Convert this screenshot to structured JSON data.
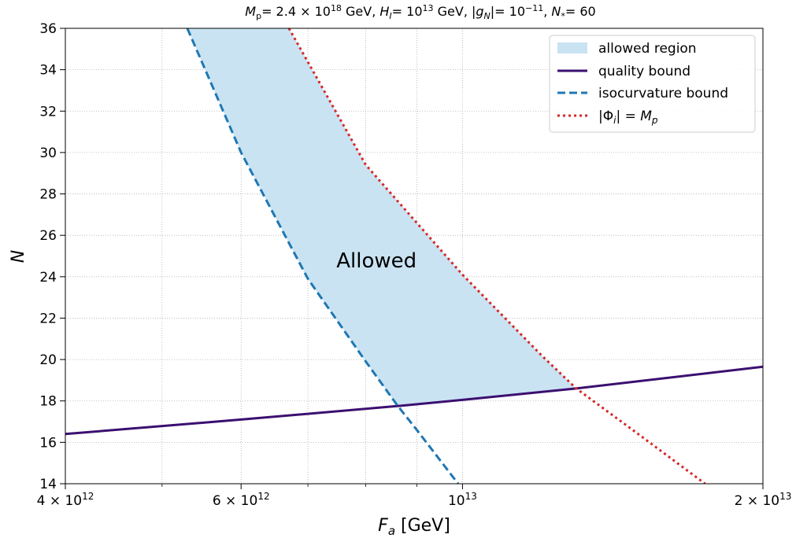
{
  "chart_data": {
    "type": "line",
    "title": "M_p = 2.4 × 10^18 GeV,  H_I = 10^13 GeV,  |g_N| = 10^−11,  N_* = 60",
    "title_parts": {
      "mp_value": "= 2.4 × 10",
      "mp_exp": "18",
      "hi_value": "= 10",
      "hi_exp": "13",
      "gn_value": "= 10",
      "gn_exp": "−11",
      "nstar_value": "= 60",
      "unit": "GeV"
    },
    "xlabel": "F_a [GeV]",
    "xlabel_unit": "[GeV]",
    "ylabel": "N",
    "xscale": "log",
    "xlim": [
      4000000000000.0,
      20000000000000.0
    ],
    "ylim": [
      14,
      36
    ],
    "grid": true,
    "x_ticks": [
      {
        "value": 4000000000000.0,
        "mant": "4",
        "exp": "12"
      },
      {
        "value": 6000000000000.0,
        "mant": "6",
        "exp": "12"
      },
      {
        "value": 10000000000000.0,
        "mant": "",
        "exp": "13"
      },
      {
        "value": 20000000000000.0,
        "mant": "2",
        "exp": "13"
      }
    ],
    "x_minor_ticks": [
      5000000000000.0,
      7000000000000.0,
      8000000000000.0,
      9000000000000.0
    ],
    "y_ticks": [
      14,
      16,
      18,
      20,
      22,
      24,
      26,
      28,
      30,
      32,
      34,
      36
    ],
    "series": [
      {
        "name": "quality bound",
        "style": "solid",
        "color": "#3b0f70",
        "x": [
          4000000000000.0,
          6000000000000.0,
          8600000000000.0,
          10000000000000.0,
          13000000000000.0,
          20000000000000.0
        ],
        "y": [
          16.4,
          17.1,
          17.75,
          18.05,
          18.6,
          19.65
        ]
      },
      {
        "name": "isocurvature bound",
        "style": "dashed",
        "color": "#1f77b4",
        "x": [
          5300000000000.0,
          6000000000000.0,
          7000000000000.0,
          8000000000000.0,
          8600000000000.0,
          9000000000000.0,
          9900000000000.0
        ],
        "y": [
          36,
          30,
          23.9,
          19.9,
          17.8,
          16.6,
          14
        ]
      },
      {
        "name": "|Φ_i| = M_p",
        "style": "dotted",
        "color": "#d62728",
        "x": [
          6700000000000.0,
          8000000000000.0,
          10000000000000.0,
          12000000000000.0,
          13000000000000.0,
          15000000000000.0,
          17500000000000.0
        ],
        "y": [
          36,
          29.4,
          24.1,
          20.2,
          18.6,
          16.4,
          14
        ]
      }
    ],
    "fill": {
      "name": "allowed region",
      "color": "#c9e3f2",
      "upper_x": [
        5300000000000.0,
        6000000000000.0,
        7000000000000.0,
        8000000000000.0,
        8600000000000.0
      ],
      "upper_y": [
        36,
        30,
        23.9,
        19.9,
        17.8
      ],
      "lower_x": [
        8600000000000.0,
        10000000000000.0,
        13000000000000.0
      ],
      "lower_y": [
        17.75,
        18.05,
        18.6
      ],
      "right_x": [
        13000000000000.0,
        12000000000000.0,
        10000000000000.0,
        8000000000000.0,
        6700000000000.0
      ],
      "right_y": [
        18.6,
        20.2,
        24.1,
        29.4,
        36
      ]
    },
    "legend": {
      "position": "top-right",
      "entries": [
        "allowed region",
        "quality bound",
        "isocurvature bound",
        "|Φ_i| = M_p"
      ]
    },
    "annotation": {
      "text": "Allowed",
      "x": 8200000000000.0,
      "y": 24.8
    }
  }
}
